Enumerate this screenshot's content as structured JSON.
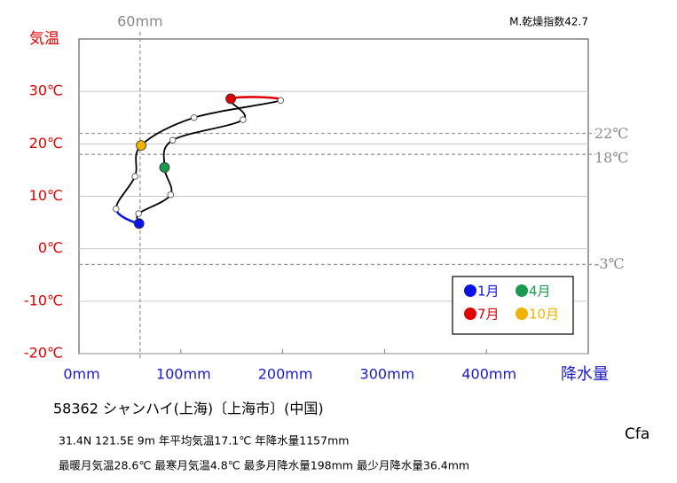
{
  "chart_data": {
    "type": "climograph",
    "y_label": "気温",
    "x_label": "降水量",
    "corner_note": "M.乾燥指数42.7",
    "x": [
      59,
      58.5,
      90,
      84,
      92,
      161,
      149,
      198,
      113,
      61,
      55,
      36.4
    ],
    "values": [
      4.8,
      6.7,
      10.3,
      15.5,
      20.7,
      24.6,
      28.6,
      28.3,
      25,
      19.7,
      13.8,
      7.6
    ],
    "line_color": "#000000",
    "markers": [
      {
        "name": "1月",
        "color": "#0a14e6",
        "index": 0
      },
      {
        "name": "4月",
        "color": "#1a9a50",
        "index": 3
      },
      {
        "name": "7月",
        "color": "#e00000",
        "index": 6
      },
      {
        "name": "10月",
        "color": "#f0b400",
        "index": 9
      }
    ],
    "color_segments": [
      {
        "from": 11,
        "to": 0,
        "color": "#0a14e6"
      },
      {
        "from": 6,
        "to": 7,
        "color": "#e00000"
      }
    ],
    "xlim": [
      0,
      500
    ],
    "ylim": [
      -20,
      40
    ],
    "xticks": [
      {
        "value": 0,
        "label": "0mm"
      },
      {
        "value": 100,
        "label": "100mm"
      },
      {
        "value": 200,
        "label": "200mm"
      },
      {
        "value": 300,
        "label": "300mm"
      },
      {
        "value": 400,
        "label": "400mm"
      }
    ],
    "yticks": [
      {
        "value": -20,
        "label": "-20℃"
      },
      {
        "value": -10,
        "label": "-10℃"
      },
      {
        "value": 0,
        "label": "0℃"
      },
      {
        "value": 10,
        "label": "10℃"
      },
      {
        "value": 20,
        "label": "20℃"
      },
      {
        "value": 30,
        "label": "30℃"
      }
    ],
    "grid": true,
    "ref_y": [
      {
        "value": 22,
        "label": "22℃"
      },
      {
        "value": 18,
        "label": "18℃"
      },
      {
        "value": -3,
        "label": "-3℃"
      }
    ],
    "ref_x": [
      {
        "value": 60,
        "label": "60mm"
      }
    ],
    "legend": "lower-right"
  },
  "station": "58362  シャンハイ(上海)〔上海市〕(中国)",
  "info1": "31.4N  121.5E 9m  年平均気温17.1℃ 年降水量1157mm",
  "info2": "最暖月気温28.6℃ 最寒月気温4.8℃ 最多月降水量198mm 最少月降水量36.4mm",
  "climate": "Cfa"
}
